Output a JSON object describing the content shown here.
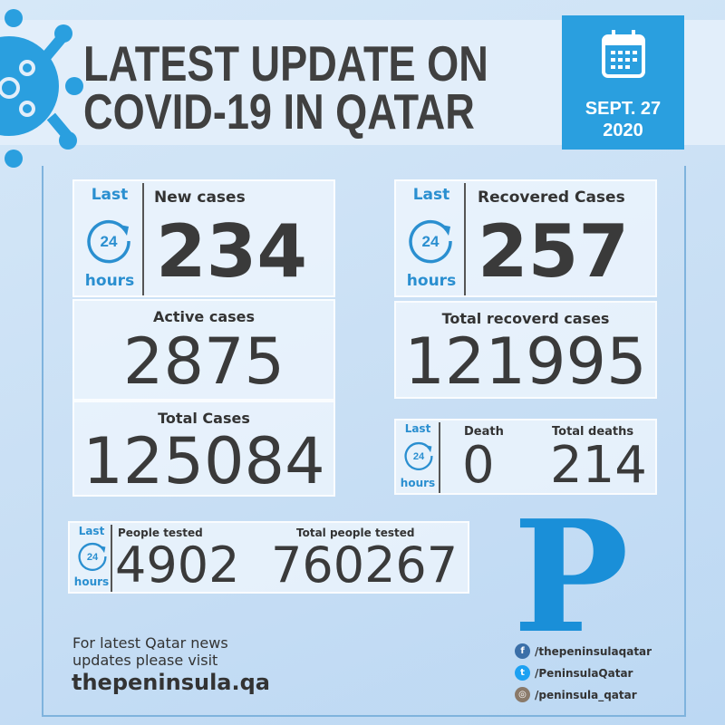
{
  "header": {
    "title_line1": "LATEST UPDATE ON",
    "title_line2": "COVID-19 IN QATAR",
    "date_line1": "SEPT. 27",
    "date_line2": "2020"
  },
  "last24": {
    "top": "Last",
    "middle": "24",
    "bottom": "hours"
  },
  "stats": {
    "new_cases": {
      "label": "New cases",
      "value": "234"
    },
    "recovered_cases": {
      "label": "Recovered Cases",
      "value": "257"
    },
    "active_cases": {
      "label": "Active cases",
      "value": "2875"
    },
    "total_recovered": {
      "label": "Total recoverd cases",
      "value": "121995"
    },
    "total_cases": {
      "label": "Total Cases",
      "value": "125084"
    },
    "death": {
      "label": "Death",
      "value": "0"
    },
    "total_deaths": {
      "label": "Total deaths",
      "value": "214"
    },
    "people_tested": {
      "label": "People tested",
      "value": "4902"
    },
    "total_tested": {
      "label": "Total people tested",
      "value": "760267"
    }
  },
  "logo": {
    "letter": "P"
  },
  "footer": {
    "line1": "For latest Qatar news",
    "line2": "updates please visit",
    "site": "thepeninsula.qa"
  },
  "social": [
    {
      "icon": "facebook-icon",
      "handle": "/thepeninsulaqatar",
      "color": "#3b6fa8"
    },
    {
      "icon": "twitter-icon",
      "handle": "/PeninsulaQatar",
      "color": "#1da1f2"
    },
    {
      "icon": "instagram-icon",
      "handle": "/peninsula_qatar",
      "color": "#8a7a6a"
    }
  ],
  "colors": {
    "accent": "#2a9fdf",
    "text": "#3a3a3a"
  }
}
